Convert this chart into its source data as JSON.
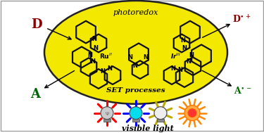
{
  "bg_color": "#ffffff",
  "ellipse_color": "#f2e800",
  "ellipse_edge": "#222222",
  "photoredox_text": "photoredox",
  "set_text": "SET processes",
  "D_left_color": "#880000",
  "D_right_color": "#880000",
  "A_left_color": "#006600",
  "A_right_color": "#006600",
  "visible_light_text": "visible light",
  "ring_color": "#111111",
  "N_color": "#111111"
}
